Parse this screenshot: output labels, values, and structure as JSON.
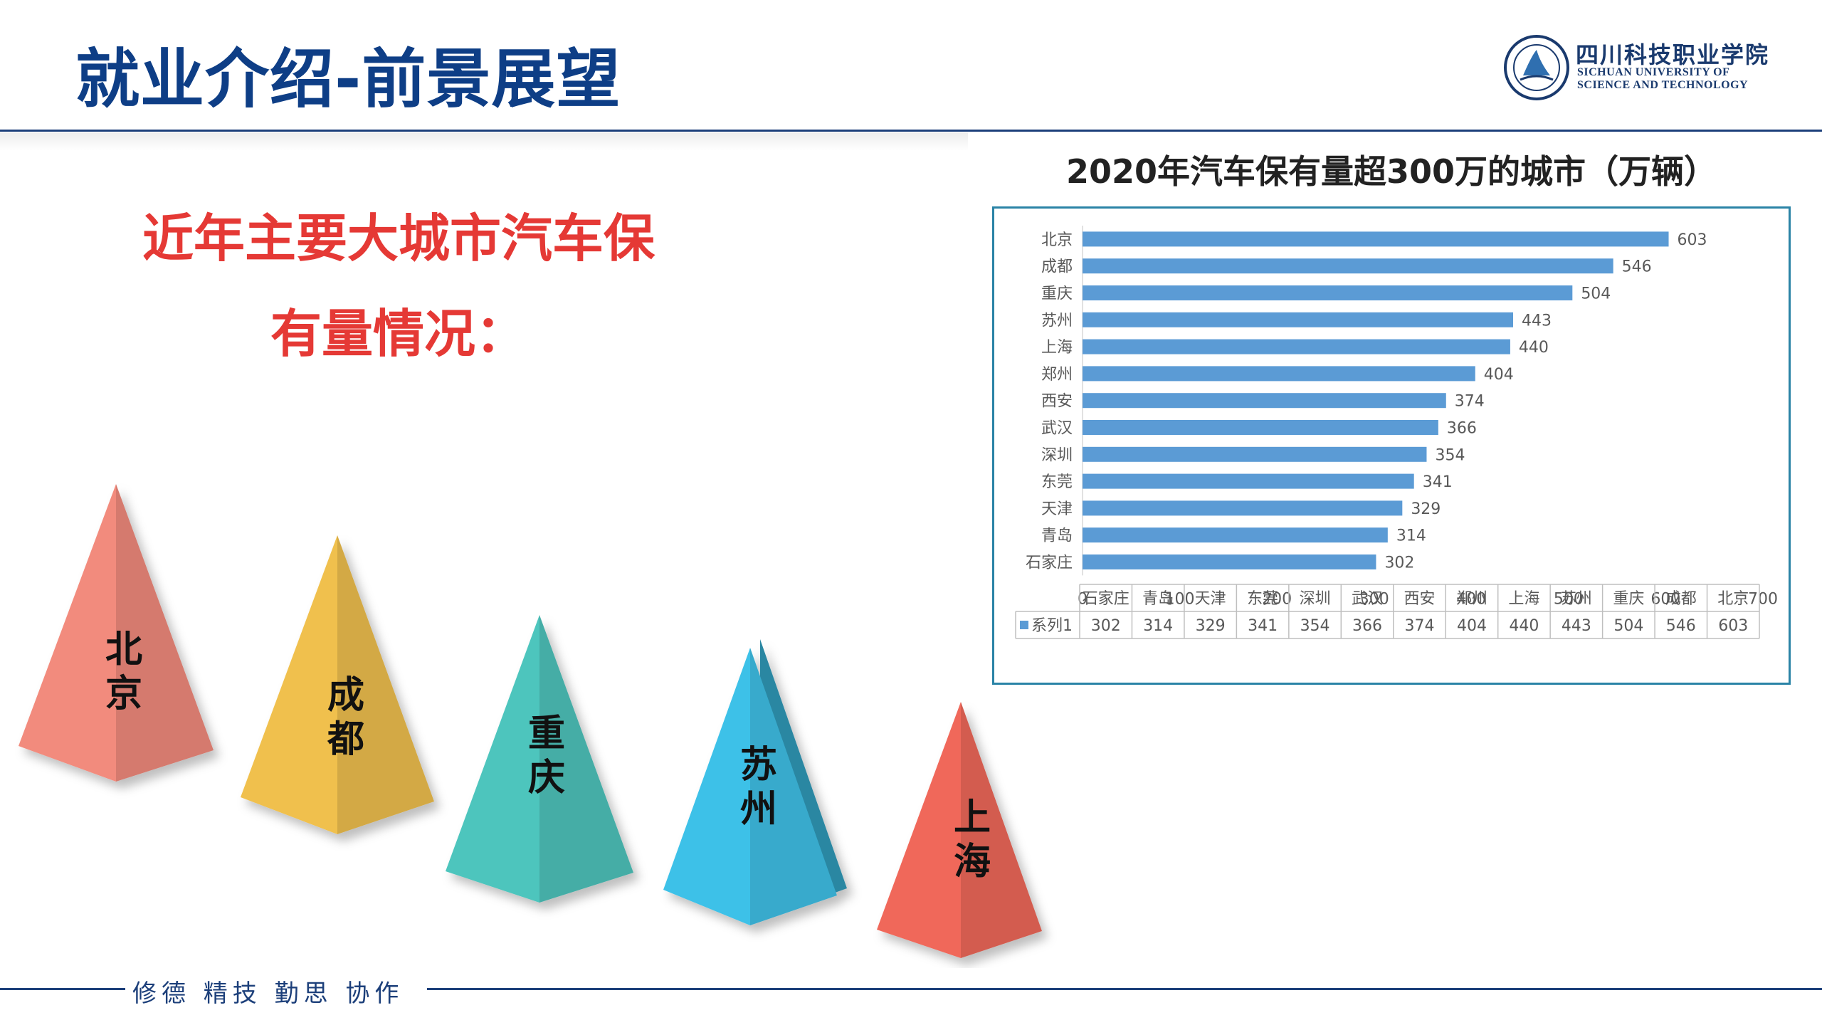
{
  "header": {
    "title": "就业介绍-前景展望",
    "logo": {
      "name_cn": "四川科技职业学院",
      "name_en_line1": "SICHUAN UNIVERSITY OF",
      "name_en_line2": "SCIENCE AND TECHNOLOGY"
    }
  },
  "intro": {
    "line1": "近年主要大城市汽车保",
    "line2": "有量情况："
  },
  "pyramids": [
    {
      "label": "北京",
      "color": "#f28b7d"
    },
    {
      "label": "成都",
      "color": "#f0c04e"
    },
    {
      "label": "重庆",
      "color": "#4ec5bd"
    },
    {
      "label": "苏州",
      "color": "#3ec1e8"
    },
    {
      "label": "上海",
      "color": "#f0675a"
    }
  ],
  "footer": {
    "motto": "修德 精技 勤思 协作"
  },
  "chart_data": {
    "type": "bar",
    "orientation": "horizontal",
    "title": "2020年汽车保有量超300万的城市（万辆）",
    "categories": [
      "北京",
      "成都",
      "重庆",
      "苏州",
      "上海",
      "郑州",
      "西安",
      "武汉",
      "深圳",
      "东莞",
      "天津",
      "青岛",
      "石家庄"
    ],
    "series": [
      {
        "name": "系列1",
        "values": [
          603,
          546,
          504,
          443,
          440,
          404,
          374,
          366,
          354,
          341,
          329,
          314,
          302
        ],
        "color": "#5b9bd5"
      }
    ],
    "xlim": [
      0,
      700
    ],
    "x_ticks": [
      0,
      100,
      200,
      300,
      400,
      500,
      600,
      700
    ],
    "grid": false,
    "data_labels": true,
    "data_table": {
      "categories": [
        "石家庄",
        "青岛",
        "天津",
        "东莞",
        "深圳",
        "武汉",
        "西安",
        "郑州",
        "上海",
        "苏州",
        "重庆",
        "成都",
        "北京"
      ],
      "series_label": "系列1",
      "values": [
        302,
        314,
        329,
        341,
        354,
        366,
        374,
        404,
        440,
        443,
        504,
        546,
        603
      ]
    }
  }
}
